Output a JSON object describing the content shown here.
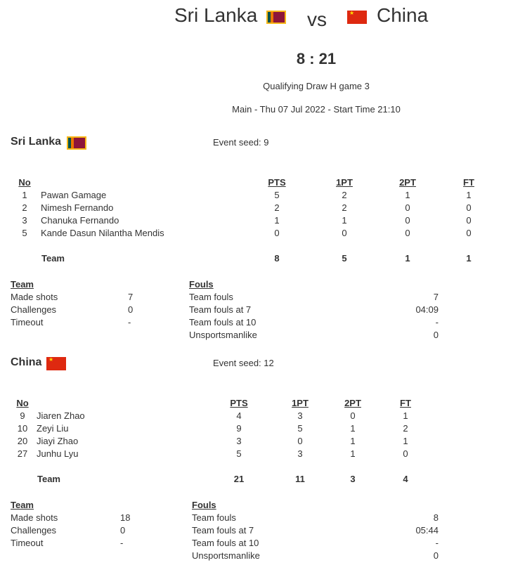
{
  "header": {
    "home": "Sri Lanka",
    "vs": "vs",
    "away": "China",
    "score": "8 : 21",
    "round": "Qualifying Draw H game 3",
    "info": "Main - Thu 07 Jul 2022 - Start Time 21:10"
  },
  "columns": {
    "no": "No",
    "pts": "PTS",
    "pt1": "1PT",
    "pt2": "2PT",
    "ft": "FT",
    "team": "Team"
  },
  "labels": {
    "team": "Team",
    "made_shots": "Made shots",
    "challenges": "Challenges",
    "timeout": "Timeout",
    "fouls": "Fouls",
    "team_fouls": "Team fouls",
    "fouls7": "Team fouls at 7",
    "fouls10": "Team fouls at 10",
    "unsportsmanlike": "Unsportsmanlike"
  },
  "teams": [
    {
      "name": "Sri Lanka",
      "seed": "Event seed: 9",
      "flag_colors": [
        "#00534e",
        "#eb7400",
        "#8d153a",
        "#f7b718"
      ],
      "players": [
        [
          "1",
          "Pawan Gamage",
          "5",
          "2",
          "1",
          "1"
        ],
        [
          "2",
          "Nimesh Fernando",
          "2",
          "2",
          "0",
          "0"
        ],
        [
          "3",
          "Chanuka Fernando",
          "1",
          "1",
          "0",
          "0"
        ],
        [
          "5",
          "Kande Dasun Nilantha Mendis",
          "0",
          "0",
          "0",
          "0"
        ]
      ],
      "totals": [
        "8",
        "5",
        "1",
        "1"
      ],
      "stats": {
        "made_shots": "7",
        "challenges": "0",
        "timeout": "-",
        "team_fouls": "7",
        "fouls7": "04:09",
        "fouls10": "-",
        "unsportsmanlike": "0"
      }
    },
    {
      "name": "China",
      "seed": "Event seed: 12",
      "flag_colors": [
        "#de2910",
        "#ffde00"
      ],
      "players": [
        [
          "9",
          "Jiaren Zhao",
          "4",
          "3",
          "0",
          "1"
        ],
        [
          "10",
          "Zeyi Liu",
          "9",
          "5",
          "1",
          "2"
        ],
        [
          "20",
          "Jiayi Zhao",
          "3",
          "0",
          "1",
          "1"
        ],
        [
          "27",
          "Junhu Lyu",
          "5",
          "3",
          "1",
          "0"
        ]
      ],
      "totals": [
        "21",
        "11",
        "3",
        "4"
      ],
      "stats": {
        "made_shots": "18",
        "challenges": "0",
        "timeout": "-",
        "team_fouls": "8",
        "fouls7": "05:44",
        "fouls10": "-",
        "unsportsmanlike": "0"
      }
    }
  ]
}
